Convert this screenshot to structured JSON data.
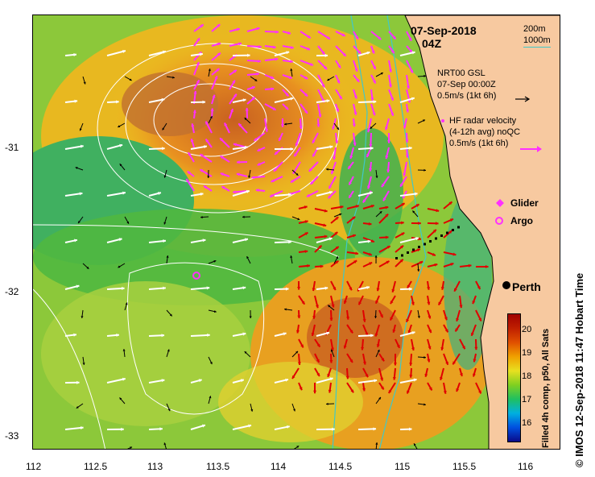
{
  "map_title": {
    "date": "07-Sep-2018",
    "time": "04Z"
  },
  "depth_legend": {
    "line1": "200m",
    "line2": "1000m"
  },
  "legend": {
    "gsl_title": "NRT00 GSL",
    "gsl_date": "07-Sep 00:00Z",
    "gsl_scale": "0.5m/s (1kt 6h)",
    "hf_title": "HF radar velocity",
    "hf_avg": "(4-12h avg) noQC",
    "hf_scale": "0.5m/s (1kt 6h)",
    "glider": "Glider",
    "argo": "Argo"
  },
  "city": "Perth",
  "x_ticks": [
    "112",
    "112.5",
    "113",
    "113.5",
    "114",
    "114.5",
    "115",
    "115.5",
    "116"
  ],
  "y_ticks": [
    "-31",
    "-32",
    "-33"
  ],
  "colorbar": {
    "ticks": [
      "16",
      "17",
      "18",
      "19",
      "20"
    ],
    "label": "Filled 4h comp, p50, All Sats",
    "colors": [
      "#0a0a8a",
      "#0050e0",
      "#00b0e0",
      "#20c060",
      "#80d020",
      "#e8e020",
      "#f0a000",
      "#e05000",
      "#c02000",
      "#a00000"
    ]
  },
  "credit": "© IMOS 12-Sep-2018 11:47 Hobart Time",
  "colors": {
    "land": "#f7c9a0",
    "isobath": "#40c8c8",
    "contour": "#ffffff",
    "hf_arrow": "#ff30ff",
    "gsl_arrow": "#000000",
    "red_arrow": "#e00000"
  }
}
